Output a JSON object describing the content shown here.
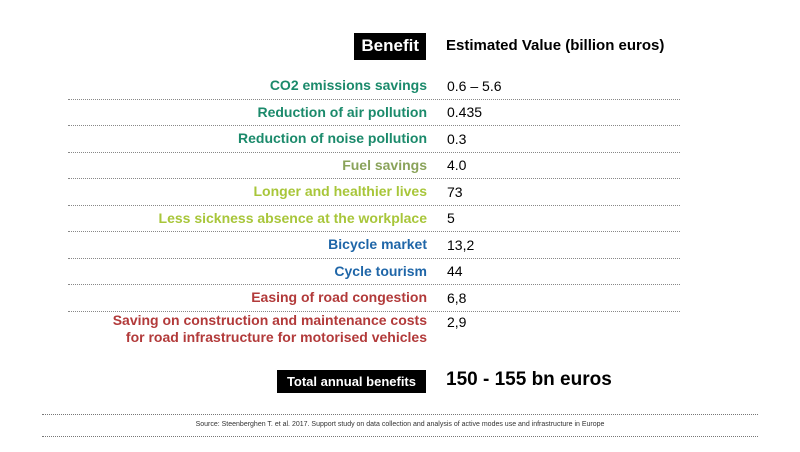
{
  "header": {
    "benefit_label": "Benefit",
    "value_label": "Estimated Value (billion euros)"
  },
  "rows": [
    {
      "label": "CO2 emissions savings",
      "value": "0.6 – 5.6",
      "color": "#1b8a6b"
    },
    {
      "label": "Reduction of air pollution",
      "value": "0.435",
      "color": "#1b8a6b"
    },
    {
      "label": "Reduction of noise pollution",
      "value": "0.3",
      "color": "#1b8a6b"
    },
    {
      "label": "Fuel savings",
      "value": "4.0",
      "color": "#8aa35a"
    },
    {
      "label": "Longer and healthier lives",
      "value": "73",
      "color": "#a8c63a"
    },
    {
      "label": "Less sickness absence at the workplace",
      "value": "5",
      "color": "#a8c63a"
    },
    {
      "label": "Bicycle market",
      "value": "13,2",
      "color": "#1f66a8"
    },
    {
      "label": "Cycle tourism",
      "value": "44",
      "color": "#1f66a8"
    },
    {
      "label": "Easing of road congestion",
      "value": "6,8",
      "color": "#b23a3a"
    },
    {
      "label_line1": "Saving on construction and maintenance costs",
      "label_line2": "for road infrastructure for motorised vehicles",
      "value": "2,9",
      "color": "#b23a3a"
    }
  ],
  "total": {
    "label": "Total annual benefits",
    "value": "150 - 155 bn euros"
  },
  "source": "Source: Steenberghen T. et al. 2017. Support study on data collection and analysis of active modes use and infrastructure in Europe"
}
